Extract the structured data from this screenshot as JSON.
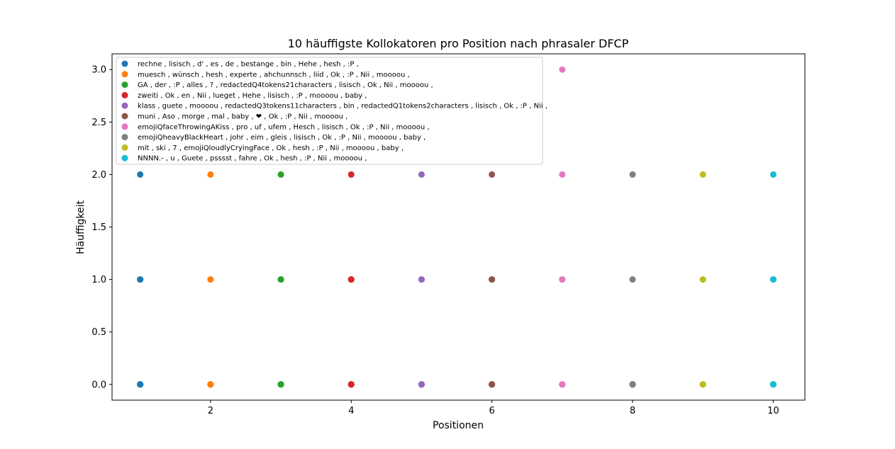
{
  "chart_data": {
    "type": "scatter",
    "title": "10 häuffigste Kollokatoren pro Position nach phrasaler DFCP",
    "xlabel": "Positionen",
    "ylabel": "Häuffigkeit",
    "xlim": [
      0.6,
      10.45
    ],
    "ylim": [
      -0.15,
      3.15
    ],
    "xticks": [
      2,
      4,
      6,
      8,
      10
    ],
    "yticks": [
      0.0,
      0.5,
      1.0,
      1.5,
      2.0,
      2.5,
      3.0
    ],
    "xtick_labels": [
      "2",
      "4",
      "6",
      "8",
      "10"
    ],
    "ytick_labels": [
      "0.0",
      "0.5",
      "1.0",
      "1.5",
      "2.0",
      "2.5",
      "3.0"
    ],
    "grid": false,
    "legend_position": "upper-left",
    "series": [
      {
        "name": "rechne , lisisch , d' , es , de , bestange , bin , Hehe , hesh , :P ,",
        "color": "#1f77b4",
        "x": 1,
        "values": [
          2,
          1,
          1,
          1,
          0,
          0,
          0,
          0,
          0,
          0
        ]
      },
      {
        "name": "muesch , wünsch , hesh , experte , ahchunnsch , liid , Ok , :P , Nii , moooou ,",
        "color": "#ff7f0e",
        "x": 2,
        "values": [
          2,
          1,
          1,
          0,
          0,
          0,
          0,
          0,
          0,
          0
        ]
      },
      {
        "name": "GA , der , :P , alles , ? , redactedQ4tokens21characters , lisisch , Ok , Nii , moooou ,",
        "color": "#2ca02c",
        "x": 3,
        "values": [
          2,
          1,
          1,
          1,
          0,
          0,
          0,
          0,
          0,
          0
        ]
      },
      {
        "name": "zweiti , Ok , en , Nii , lueget , Hehe , lisisch , :P , moooou , baby ,",
        "color": "#d62728",
        "x": 4,
        "values": [
          2,
          1,
          1,
          1,
          0,
          0,
          0,
          0,
          0,
          0
        ]
      },
      {
        "name": "klass , guete , moooou , redactedQ3tokens11characters , bin , redactedQ1tokens2characters , lisisch , Ok , :P , Nii ,",
        "color": "#9467bd",
        "x": 5,
        "values": [
          2,
          1,
          1,
          0,
          0,
          0,
          0,
          0,
          0,
          0
        ]
      },
      {
        "name": "muni , Aso , morge , mal , baby , ❤ , Ok , :P , Nii , moooou ,",
        "color": "#8c564b",
        "x": 6,
        "values": [
          2,
          1,
          1,
          1,
          0,
          0,
          0,
          0,
          0,
          0
        ]
      },
      {
        "name": "emojiQfaceThrowingAKiss , pro , uf , ufem , Hesch , lisisch , Ok , :P , Nii , moooou ,",
        "color": "#e377c2",
        "x": 7,
        "values": [
          3,
          2,
          1,
          1,
          0,
          0,
          0,
          0,
          0,
          0
        ]
      },
      {
        "name": "emojiQheavyBlackHeart , johr , eim , gleis , lisisch , Ok , :P , Nii , moooou , baby ,",
        "color": "#7f7f7f",
        "x": 8,
        "values": [
          2,
          1,
          0,
          0,
          0,
          0,
          0,
          0,
          0,
          0
        ]
      },
      {
        "name": "mit , ski , 7 , emojiQloudlyCryingFace , Ok , hesh , :P , Nii , moooou , baby ,",
        "color": "#bcbd22",
        "x": 9,
        "values": [
          2,
          1,
          1,
          0,
          0,
          0,
          0,
          0,
          0,
          0
        ]
      },
      {
        "name": "NNNN.- , u , Guete , psssst , fahre , Ok , hesh , :P , Nii , moooou ,",
        "color": "#17becf",
        "x": 10,
        "values": [
          2,
          1,
          1,
          1,
          0,
          0,
          0,
          0,
          0,
          0
        ]
      }
    ]
  }
}
